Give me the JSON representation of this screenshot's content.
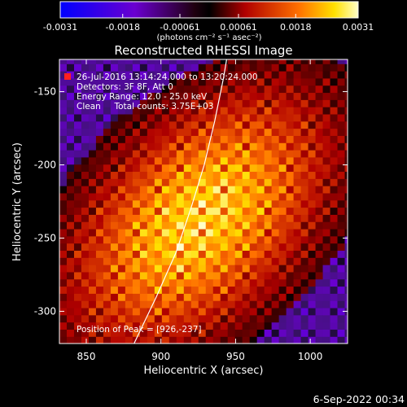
{
  "chart_data": {
    "type": "heatmap",
    "title": "Reconstructed RHESSI Image",
    "xlabel": "Heliocentric X (arcsec)",
    "ylabel": "Heliocentric Y (arcsec)",
    "xlim": [
      832,
      1025
    ],
    "ylim": [
      -322,
      -128
    ],
    "x_ticks": [
      850,
      900,
      950,
      1000
    ],
    "y_ticks": [
      -150,
      -200,
      -250,
      -300
    ],
    "colorbar": {
      "ticks": [
        {
          "label": "-0.0031",
          "value": -0.0031
        },
        {
          "label": "-0.0018",
          "value": -0.0018
        },
        {
          "label": "-0.00061",
          "value": -0.00061
        },
        {
          "label": "0.00061",
          "value": 0.00061
        },
        {
          "label": "0.0018",
          "value": 0.0018
        },
        {
          "label": "0.0031",
          "value": 0.0031
        }
      ],
      "range": [
        -0.0031,
        0.0031
      ],
      "unit_label": "(photons cm⁻² s⁻¹ asec⁻²)"
    },
    "annotations": [
      "26-Jul-2016 13:14:24.000 to 13:20:24.000",
      "Detectors: 3F 8F, Att 0",
      "Energy Range: 12.0 - 25.0 keV",
      "Clean     Total counts: 3.75E+03"
    ],
    "peak_label": "Position of Peak = [926,-237]",
    "peak": {
      "x": 926,
      "y": -237
    },
    "limb": [
      [
        882,
        -322
      ],
      [
        897,
        -290
      ],
      [
        910,
        -260
      ],
      [
        920,
        -230
      ],
      [
        929,
        -200
      ],
      [
        936,
        -170
      ],
      [
        942,
        -140
      ],
      [
        944,
        -128
      ]
    ],
    "limb_color": "#ffffff"
  },
  "footer": {
    "date": "6-Sep-2022 00:34"
  }
}
